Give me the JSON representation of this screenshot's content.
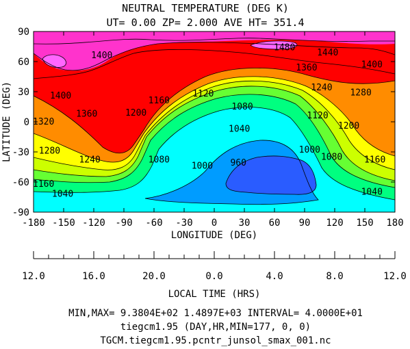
{
  "chart_data": {
    "type": "contour",
    "title": "NEUTRAL TEMPERATURE (DEG K)",
    "subtitle": "UT= 0.00 ZP=  2.000 AVE HT= 351.4",
    "xlabel": "LONGITUDE (DEG)",
    "ylabel": "LATITUDE (DEG)",
    "xlim": [
      -180,
      180
    ],
    "ylim": [
      -90,
      90
    ],
    "x_ticks": [
      "-180",
      "-150",
      "-120",
      "-90",
      "-60",
      "-30",
      "0",
      "30",
      "60",
      "90",
      "120",
      "150",
      "180"
    ],
    "y_ticks": [
      "-90",
      "-60",
      "-30",
      "0",
      "30",
      "60",
      "90"
    ],
    "localtime_label": "LOCAL TIME (HRS)",
    "localtime_ticks": [
      "12.0",
      "16.0",
      "20.0",
      "0.0",
      "4.0",
      "8.0",
      "12.0"
    ],
    "contour_interval": 40,
    "contour_labels": [
      {
        "text": "1480",
        "lon": 70,
        "lat": 74
      },
      {
        "text": "1440",
        "lon": 113,
        "lat": 69
      },
      {
        "text": "1400",
        "lon": -112,
        "lat": 66
      },
      {
        "text": "1400",
        "lon": 157,
        "lat": 57
      },
      {
        "text": "1360",
        "lon": 92,
        "lat": 54
      },
      {
        "text": "1400",
        "lon": -153,
        "lat": 26
      },
      {
        "text": "1360",
        "lon": -127,
        "lat": 8
      },
      {
        "text": "1320",
        "lon": -170,
        "lat": 0
      },
      {
        "text": "1280",
        "lon": -164,
        "lat": -29
      },
      {
        "text": "1240",
        "lon": -124,
        "lat": -38
      },
      {
        "text": "1200",
        "lon": -78,
        "lat": 9
      },
      {
        "text": "1160",
        "lon": -55,
        "lat": 21
      },
      {
        "text": "1120",
        "lon": -11,
        "lat": 28
      },
      {
        "text": "1080",
        "lon": 28,
        "lat": 15
      },
      {
        "text": "1040",
        "lon": 25,
        "lat": -7
      },
      {
        "text": "1000",
        "lon": -12,
        "lat": -44
      },
      {
        "text": "960",
        "lon": 24,
        "lat": -41
      },
      {
        "text": "1000",
        "lon": 95,
        "lat": -28
      },
      {
        "text": "1080",
        "lon": -55,
        "lat": -38
      },
      {
        "text": "1040",
        "lon": -151,
        "lat": -72
      },
      {
        "text": "1160",
        "lon": -170,
        "lat": -62
      },
      {
        "text": "1240",
        "lon": 107,
        "lat": 34
      },
      {
        "text": "1280",
        "lon": 146,
        "lat": 29
      },
      {
        "text": "1200",
        "lon": 134,
        "lat": -4
      },
      {
        "text": "1120",
        "lon": 103,
        "lat": 6
      },
      {
        "text": "1080",
        "lon": 117,
        "lat": -35
      },
      {
        "text": "1160",
        "lon": 160,
        "lat": -38
      },
      {
        "text": "1040",
        "lon": 157,
        "lat": -70
      }
    ],
    "footer": [
      "MIN,MAX=  9.3804E+02  1.4897E+03 INTERVAL=  4.0000E+01",
      "tiegcm1.95  (DAY,HR,MIN=177, 0, 0)",
      "TGCM.tiegcm1.95.pcntr_junsol_smax_001.nc"
    ],
    "fill_colors": [
      "#00ffff",
      "#009cff",
      "#2a5cff",
      "#00ffff",
      "#00ff80",
      "#66ff33",
      "#ccff00",
      "#ffff00",
      "#ffc800",
      "#ff8c00",
      "#ff4000",
      "#ff0000",
      "#ff33cc"
    ]
  }
}
